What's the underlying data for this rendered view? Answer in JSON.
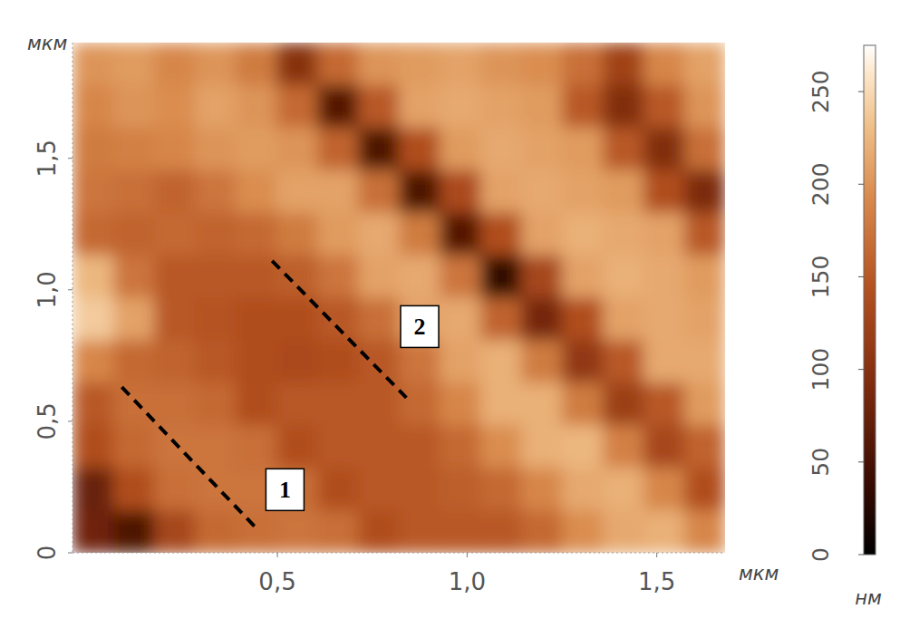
{
  "chart_data": {
    "type": "heatmap",
    "x_label": "мкм",
    "y_label": "мкм",
    "xlim": [
      -0.04,
      1.68
    ],
    "ylim": [
      0,
      1.94
    ],
    "xticks": [
      {
        "value": 0.5,
        "label": "0,5"
      },
      {
        "value": 1.0,
        "label": "1,0"
      },
      {
        "value": 1.5,
        "label": "1,5"
      }
    ],
    "yticks": [
      0,
      {
        "value": 0.5,
        "label": "0,5"
      },
      {
        "value": 1.0,
        "label": "1,0"
      },
      {
        "value": 1.5,
        "label": "1,5"
      }
    ],
    "cells": [
      [
        200,
        205,
        190,
        200,
        180,
        100,
        165,
        200,
        205,
        210,
        200,
        195,
        170,
        125,
        190,
        210
      ],
      [
        190,
        200,
        195,
        210,
        200,
        165,
        60,
        150,
        210,
        215,
        210,
        205,
        150,
        95,
        150,
        200
      ],
      [
        180,
        185,
        190,
        200,
        205,
        200,
        160,
        55,
        140,
        205,
        215,
        210,
        205,
        150,
        95,
        170
      ],
      [
        175,
        170,
        160,
        175,
        195,
        210,
        210,
        170,
        55,
        135,
        210,
        215,
        210,
        205,
        140,
        90
      ],
      [
        165,
        160,
        165,
        160,
        165,
        180,
        205,
        215,
        180,
        60,
        140,
        210,
        220,
        215,
        210,
        150
      ],
      [
        225,
        175,
        150,
        150,
        150,
        155,
        175,
        210,
        215,
        175,
        35,
        130,
        210,
        220,
        215,
        205
      ],
      [
        240,
        210,
        150,
        145,
        140,
        140,
        150,
        170,
        210,
        215,
        160,
        85,
        140,
        210,
        215,
        210
      ],
      [
        190,
        165,
        160,
        150,
        140,
        135,
        140,
        150,
        175,
        210,
        220,
        180,
        110,
        150,
        215,
        215
      ],
      [
        150,
        170,
        170,
        165,
        140,
        150,
        150,
        150,
        165,
        190,
        220,
        220,
        180,
        120,
        150,
        205
      ],
      [
        140,
        165,
        175,
        175,
        170,
        140,
        150,
        150,
        150,
        165,
        195,
        220,
        225,
        185,
        130,
        160
      ],
      [
        75,
        140,
        170,
        175,
        175,
        170,
        140,
        150,
        150,
        155,
        165,
        190,
        215,
        220,
        190,
        140
      ],
      [
        80,
        55,
        130,
        165,
        170,
        175,
        170,
        140,
        150,
        150,
        150,
        165,
        195,
        215,
        220,
        190
      ]
    ],
    "colorbar": {
      "label": "нм",
      "range": [
        0,
        275
      ],
      "ticks": [
        0,
        50,
        100,
        150,
        200,
        250
      ]
    },
    "annotations": [
      {
        "text": "1",
        "x": 0.52,
        "y": 0.24,
        "line_x": [
          0.09,
          0.44
        ],
        "line_y": [
          0.63,
          0.1
        ],
        "line_style": "dashed"
      },
      {
        "text": "2",
        "x": 0.875,
        "y": 0.86,
        "line_x": [
          0.486,
          0.84
        ],
        "line_y": [
          1.11,
          0.59
        ],
        "line_style": "dashed"
      }
    ]
  }
}
